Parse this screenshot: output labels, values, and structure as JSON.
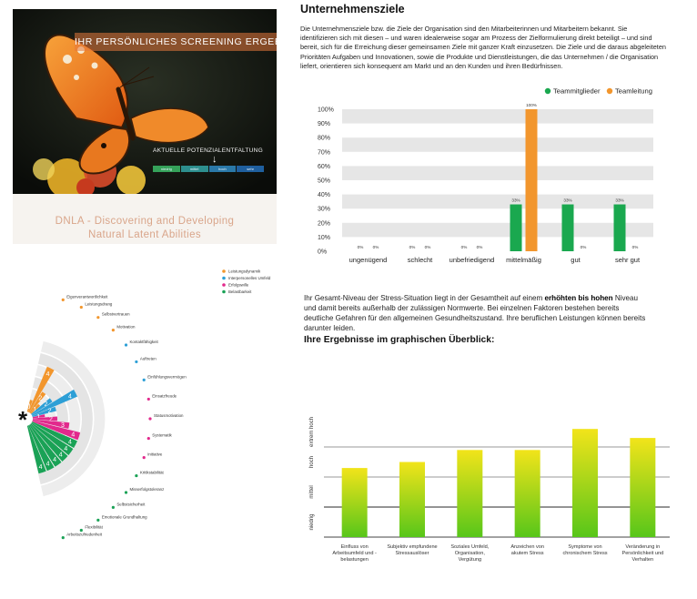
{
  "cover": {
    "banner": "IHR PERSÖNLICHES SCREENING ERGEBNIS",
    "potential_label": "AKTUELLE POTENZIALENTFALTUNG",
    "scale": [
      "niedrig",
      "mittel",
      "hoch",
      "sehr"
    ],
    "dnla_line1": "DNLA - Discovering and Developing",
    "dnla_line2": "Natural Latent Abilities"
  },
  "radial": {
    "legend": [
      {
        "label": "Leistungsdynamik",
        "color": "#f2962d"
      },
      {
        "label": "Interpersonelles Umfeld",
        "color": "#2d9fd6"
      },
      {
        "label": "Erfolgswille",
        "color": "#e2298c"
      },
      {
        "label": "Belastbarkeit",
        "color": "#1aa256"
      }
    ],
    "center_symbol": "*",
    "factors": [
      {
        "label": "Eigenverantwortlichkeit",
        "group": "Leistungsdynamik"
      },
      {
        "label": "Leistungsdrang",
        "group": "Leistungsdynamik"
      },
      {
        "label": "Selbstvertrauen",
        "group": "Leistungsdynamik"
      },
      {
        "label": "Motivation",
        "group": "Leistungsdynamik"
      },
      {
        "label": "Kontaktfähigkeit",
        "group": "Interpersonelles Umfeld"
      },
      {
        "label": "Auftreten",
        "group": "Interpersonelles Umfeld"
      },
      {
        "label": "Einfühlungsvermögen",
        "group": "Interpersonelles Umfeld"
      },
      {
        "label": "Einsatzfreude",
        "group": "Erfolgswille"
      },
      {
        "label": "Statusmotivation",
        "group": "Erfolgswille"
      },
      {
        "label": "Systematik",
        "group": "Erfolgswille"
      },
      {
        "label": "Initiative",
        "group": "Erfolgswille"
      },
      {
        "label": "Kritikstabilität",
        "group": "Belastbarkeit"
      },
      {
        "label": "Misserfolgstoleranz",
        "group": "Belastbarkeit"
      },
      {
        "label": "Selbstsicherheit",
        "group": "Belastbarkeit"
      },
      {
        "label": "Emotionale Grundhaltung",
        "group": "Belastbarkeit"
      },
      {
        "label": "Flexibilität",
        "group": "Belastbarkeit"
      },
      {
        "label": "Arbeitszufriedenheit",
        "group": "Belastbarkeit"
      }
    ],
    "chart_data": {
      "type": "radial-bar",
      "scale_max": 6,
      "segments": [
        {
          "value": 1,
          "group": "Leistungsdynamik"
        },
        {
          "value": 4,
          "group": "Leistungsdynamik"
        },
        {
          "value": 2,
          "group": "Leistungsdynamik"
        },
        {
          "value": 1,
          "group": "Leistungsdynamik"
        },
        {
          "value": 2,
          "group": "Interpersonelles Umfeld"
        },
        {
          "value": 4,
          "group": "Interpersonelles Umfeld"
        },
        {
          "value": 2,
          "group": "Interpersonelles Umfeld"
        },
        {
          "value": 1,
          "group": "Erfolgswille"
        },
        {
          "value": 2,
          "group": "Erfolgswille"
        },
        {
          "value": 3,
          "group": "Erfolgswille"
        },
        {
          "value": 4,
          "group": "Erfolgswille"
        },
        {
          "value": 4,
          "group": "Belastbarkeit"
        },
        {
          "value": 4,
          "group": "Belastbarkeit"
        },
        {
          "value": 4,
          "group": "Belastbarkeit"
        },
        {
          "value": 4,
          "group": "Belastbarkeit"
        },
        {
          "value": 4,
          "group": "Belastbarkeit"
        },
        {
          "value": 4,
          "group": "Belastbarkeit"
        }
      ]
    }
  },
  "goals": {
    "title": "Unternehmensziele",
    "text": "Die Unternehmensziele bzw. die Ziele der Organisation sind den Mitarbeiterinnen und Mitarbeitern bekannt. Sie identifizieren sich mit diesen – und waren idealerweise sogar am Prozess der Zielformulierung direkt beteiligt – und sind bereit, sich für die Erreichung dieser gemeinsamen Ziele mit ganzer Kraft einzusetzen. Die Ziele und die daraus abgeleiteten Prioritäten Aufgaben und Innovationen, sowie die Produkte und Dienstleistungen, die das Unternehmen / die Organisation liefert, orientieren sich konsequent am Markt und an den Kunden und ihren Bedürfnissen.",
    "chart_data": {
      "type": "bar",
      "categories": [
        "ungenügend",
        "schlecht",
        "unbefriedigend",
        "mittelmäßig",
        "gut",
        "sehr gut"
      ],
      "series": [
        {
          "name": "Teammitglieder",
          "color": "#1aa84f",
          "values": [
            0,
            0,
            0,
            33,
            33,
            33
          ]
        },
        {
          "name": "Teamleitung",
          "color": "#f2962d",
          "values": [
            0,
            0,
            0,
            100,
            0,
            0
          ]
        }
      ],
      "ylim": [
        0,
        100
      ],
      "yticks": [
        "0%",
        "10%",
        "20%",
        "30%",
        "40%",
        "50%",
        "60%",
        "70%",
        "80%",
        "90%",
        "100%"
      ],
      "value_suffix": "%",
      "legend": "top-right"
    }
  },
  "stress": {
    "text_before": "Ihr Gesamt-Niveau der Stress-Situation liegt in der Gesamtheit auf einem ",
    "text_bold": "erhöhten bis hohen",
    "text_after": " Niveau und damit bereits außerhalb der zulässigen Normwerte. Bei einzelnen Faktoren bestehen bereits deutliche Gefahren für den allgemeinen Gesundheitszustand. Ihre beruflichen Leistungen können bereits darunter leiden.",
    "title": "Ihre Ergebnisse im graphischen Überblick:",
    "chart_data": {
      "type": "bar",
      "categories": [
        "Einfluss von Arbeitsumfeld und -belastungen",
        "Subjektiv empfundene Stressauslöser",
        "Soziales Umfeld, Organisation, Vergütung",
        "Anzeichen von akutem Stress",
        "Symptome von chronischem Stress",
        "Veränderung in Persönlichkeit und Verhalten"
      ],
      "category_lines": [
        [
          "Einfluss von",
          "Arbeitsumfeld und -",
          "belastungen"
        ],
        [
          "Subjektiv empfundene",
          "Stressauslöser"
        ],
        [
          "Soziales Umfeld,",
          "Organisation,",
          "Vergütung"
        ],
        [
          "Anzeichen von",
          "akutem Stress"
        ],
        [
          "Symptome von",
          "chronischem Stress"
        ],
        [
          "Veränderung in",
          "Persönlichkeit und",
          "Verhalten"
        ]
      ],
      "values": [
        2.3,
        2.5,
        2.9,
        2.9,
        3.6,
        3.3
      ],
      "levels": [
        "niedrig",
        "mittel",
        "hoch",
        "extrem hoch"
      ],
      "ylim": [
        0,
        4
      ]
    }
  }
}
